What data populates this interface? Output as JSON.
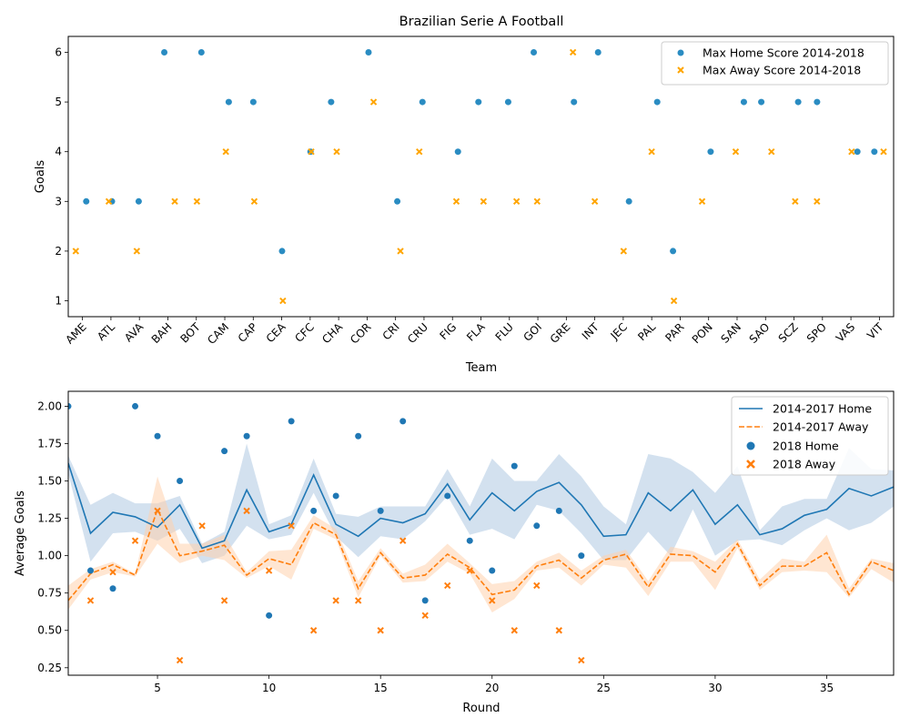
{
  "colors": {
    "home": "#1f77b4",
    "home_scatter": "#2a8cc2",
    "away_scatter": "#ffa500",
    "away_line": "#ff7f0e",
    "home_band": "#aec9e2",
    "away_band": "#ffd2ad"
  },
  "chart_data": [
    {
      "type": "scatter",
      "title": "Brazilian Serie A Football",
      "xlabel": "Team",
      "ylabel": "Goals",
      "categories": [
        "AME",
        "ATL",
        "AVA",
        "BAH",
        "BOT",
        "CAM",
        "CAP",
        "CEA",
        "CFC",
        "CHA",
        "COR",
        "CRI",
        "CRU",
        "FIG",
        "FLA",
        "FLU",
        "GOI",
        "GRE",
        "INT",
        "JEC",
        "PAL",
        "PAR",
        "PON",
        "SAN",
        "SAO",
        "SCZ",
        "SPO",
        "VAS",
        "VIT"
      ],
      "ylim": [
        0.68,
        6.32
      ],
      "yticks": [
        1,
        2,
        3,
        4,
        5,
        6
      ],
      "legend_position": "top-right",
      "series": [
        {
          "name": "Max Home Score 2014-2018",
          "marker": "circle",
          "values": [
            3,
            3,
            3,
            6,
            6,
            5,
            5,
            2,
            4,
            5,
            6,
            3,
            5,
            4,
            5,
            5,
            6,
            5,
            6,
            3,
            5,
            2,
            4,
            5,
            5,
            5,
            5,
            4,
            4
          ]
        },
        {
          "name": "Max Away Score 2014-2018",
          "marker": "x",
          "values": [
            2,
            3,
            2,
            3,
            3,
            4,
            3,
            1,
            4,
            4,
            5,
            2,
            4,
            3,
            3,
            3,
            3,
            6,
            3,
            2,
            4,
            1,
            3,
            4,
            4,
            3,
            3,
            4,
            4
          ]
        }
      ]
    },
    {
      "type": "line",
      "xlabel": "Round",
      "ylabel": "Average Goals",
      "xlim": [
        1,
        38
      ],
      "ylim": [
        0.2,
        2.1
      ],
      "xticks": [
        5,
        10,
        15,
        20,
        25,
        30,
        35
      ],
      "yticks": [
        0.25,
        0.5,
        0.75,
        1.0,
        1.25,
        1.5,
        1.75,
        2.0
      ],
      "ytick_labels": [
        "0.25",
        "0.50",
        "0.75",
        "1.00",
        "1.25",
        "1.50",
        "1.75",
        "2.00"
      ],
      "legend_position": "top-right",
      "x": [
        1,
        2,
        3,
        4,
        5,
        6,
        7,
        8,
        9,
        10,
        11,
        12,
        13,
        14,
        15,
        16,
        17,
        18,
        19,
        20,
        21,
        22,
        23,
        24,
        25,
        26,
        27,
        28,
        29,
        30,
        31,
        32,
        33,
        34,
        35,
        36,
        37,
        38
      ],
      "series": [
        {
          "name": "2014-2017 Home",
          "style": "solid",
          "values": [
            1.62,
            1.15,
            1.29,
            1.26,
            1.19,
            1.34,
            1.05,
            1.1,
            1.44,
            1.16,
            1.21,
            1.54,
            1.21,
            1.13,
            1.25,
            1.22,
            1.28,
            1.48,
            1.24,
            1.42,
            1.3,
            1.43,
            1.49,
            1.34,
            1.13,
            1.14,
            1.42,
            1.3,
            1.44,
            1.21,
            1.34,
            1.14,
            1.18,
            1.27,
            1.31,
            1.45,
            1.4,
            1.46
          ],
          "band_lower": [
            1.55,
            0.96,
            1.15,
            1.16,
            1.1,
            1.18,
            0.95,
            1.0,
            1.2,
            1.11,
            1.14,
            1.42,
            1.13,
            0.99,
            1.13,
            1.11,
            1.23,
            1.4,
            1.14,
            1.18,
            1.11,
            1.34,
            1.3,
            1.15,
            0.97,
            0.97,
            1.16,
            1.0,
            1.31,
            1.0,
            1.1,
            1.11,
            1.07,
            1.17,
            1.25,
            1.17,
            1.22,
            1.33
          ],
          "band_upper": [
            1.67,
            1.34,
            1.42,
            1.35,
            1.35,
            1.4,
            1.08,
            1.16,
            1.75,
            1.21,
            1.27,
            1.65,
            1.28,
            1.26,
            1.33,
            1.33,
            1.33,
            1.58,
            1.33,
            1.65,
            1.5,
            1.5,
            1.68,
            1.53,
            1.33,
            1.21,
            1.68,
            1.65,
            1.56,
            1.42,
            1.6,
            1.17,
            1.33,
            1.38,
            1.38,
            1.72,
            1.58,
            1.57
          ]
        },
        {
          "name": "2014-2017 Away",
          "style": "dashed",
          "values": [
            0.7,
            0.88,
            0.94,
            0.87,
            1.31,
            1.0,
            1.03,
            1.07,
            0.87,
            0.98,
            0.94,
            1.22,
            1.14,
            0.78,
            1.02,
            0.85,
            0.87,
            1.01,
            0.92,
            0.74,
            0.77,
            0.93,
            0.97,
            0.85,
            0.97,
            1.01,
            0.79,
            1.01,
            1.0,
            0.89,
            1.08,
            0.8,
            0.93,
            0.93,
            1.02,
            0.74,
            0.96,
            0.9
          ],
          "band_lower": [
            0.64,
            0.84,
            0.89,
            0.86,
            1.08,
            0.95,
            1.0,
            0.97,
            0.85,
            0.93,
            0.84,
            1.18,
            1.11,
            0.72,
            1.0,
            0.82,
            0.83,
            0.96,
            0.88,
            0.62,
            0.71,
            0.9,
            0.92,
            0.8,
            0.94,
            0.92,
            0.73,
            0.96,
            0.96,
            0.77,
            1.05,
            0.77,
            0.89,
            0.9,
            0.89,
            0.72,
            0.91,
            0.82
          ],
          "band_upper": [
            0.8,
            0.91,
            0.96,
            0.88,
            1.53,
            1.08,
            1.08,
            1.14,
            0.89,
            1.03,
            1.04,
            1.27,
            1.18,
            0.83,
            1.05,
            0.88,
            0.94,
            1.08,
            0.95,
            0.81,
            0.83,
            0.96,
            1.02,
            0.9,
            1.0,
            1.04,
            0.83,
            1.06,
            1.03,
            0.96,
            1.11,
            0.84,
            0.98,
            0.96,
            1.14,
            0.78,
            0.98,
            0.95
          ]
        },
        {
          "name": "2018 Home",
          "marker": "circle",
          "x": [
            1,
            2,
            3,
            4,
            5,
            6,
            8,
            9,
            10,
            11,
            12,
            13,
            14,
            15,
            16,
            17,
            18,
            19,
            20,
            21,
            22,
            23,
            24
          ],
          "values": [
            2.0,
            0.9,
            0.78,
            2.0,
            1.8,
            1.5,
            1.7,
            1.8,
            0.6,
            1.9,
            1.3,
            1.4,
            1.8,
            1.3,
            1.9,
            0.7,
            1.4,
            1.1,
            0.9,
            1.6,
            1.2,
            1.3,
            1.0
          ]
        },
        {
          "name": "2018 Away",
          "marker": "x",
          "x": [
            2,
            3,
            4,
            5,
            6,
            7,
            8,
            9,
            10,
            11,
            12,
            13,
            14,
            15,
            16,
            17,
            18,
            19,
            20,
            21,
            22,
            23,
            24
          ],
          "values": [
            0.7,
            0.89,
            1.1,
            1.3,
            0.3,
            1.2,
            0.7,
            1.3,
            0.9,
            1.2,
            0.5,
            0.7,
            0.7,
            0.5,
            1.1,
            0.6,
            0.8,
            0.9,
            0.7,
            0.5,
            0.8,
            0.5,
            0.3
          ]
        }
      ]
    }
  ]
}
